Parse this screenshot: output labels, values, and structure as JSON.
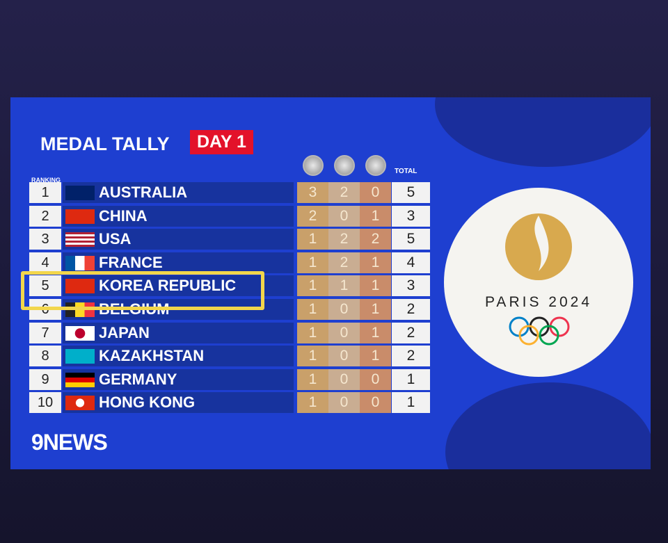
{
  "header": {
    "title": "MEDAL TALLY",
    "badge": "DAY 1"
  },
  "table": {
    "ranking_label": "RANKING",
    "total_label": "TOTAL",
    "rows": [
      {
        "rank": 1,
        "country": "AUSTRALIA",
        "gold": 3,
        "silver": 2,
        "bronze": 0,
        "total": 5
      },
      {
        "rank": 2,
        "country": "CHINA",
        "gold": 2,
        "silver": 0,
        "bronze": 1,
        "total": 3
      },
      {
        "rank": 3,
        "country": "USA",
        "gold": 1,
        "silver": 2,
        "bronze": 2,
        "total": 5
      },
      {
        "rank": 4,
        "country": "FRANCE",
        "gold": 1,
        "silver": 2,
        "bronze": 1,
        "total": 4
      },
      {
        "rank": 5,
        "country": "KOREA REPUBLIC",
        "gold": 1,
        "silver": 1,
        "bronze": 1,
        "total": 3
      },
      {
        "rank": 6,
        "country": "BELGIUM",
        "gold": 1,
        "silver": 0,
        "bronze": 1,
        "total": 2
      },
      {
        "rank": 7,
        "country": "JAPAN",
        "gold": 1,
        "silver": 0,
        "bronze": 1,
        "total": 2
      },
      {
        "rank": 8,
        "country": "KAZAKHSTAN",
        "gold": 1,
        "silver": 0,
        "bronze": 1,
        "total": 2
      },
      {
        "rank": 9,
        "country": "GERMANY",
        "gold": 1,
        "silver": 0,
        "bronze": 0,
        "total": 1
      },
      {
        "rank": 10,
        "country": "HONG KONG",
        "gold": 1,
        "silver": 0,
        "bronze": 0,
        "total": 1
      }
    ]
  },
  "logo": {
    "text": "PARIS 2024"
  },
  "brand": "9NEWS"
}
